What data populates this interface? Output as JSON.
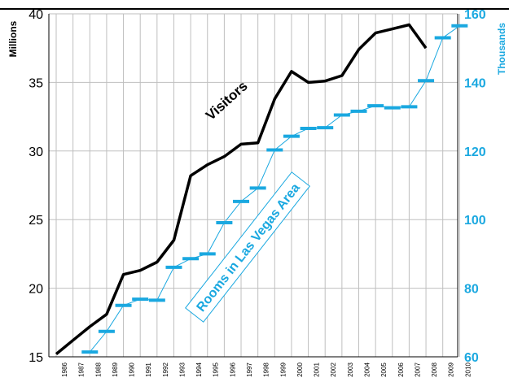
{
  "chart_data": {
    "type": "line",
    "x": [
      "1986",
      "1987",
      "1988",
      "1989",
      "1990",
      "1991",
      "1992",
      "1993",
      "1994",
      "1995",
      "1996",
      "1997",
      "1998",
      "1999",
      "2000",
      "2001",
      "2002",
      "2003",
      "2004",
      "2005",
      "2006",
      "2007",
      "2008",
      "2009",
      "2010"
    ],
    "series": [
      {
        "name": "Visitors",
        "axis": "left",
        "color": "#000000",
        "style": "thick-line",
        "values": [
          15.2,
          16.2,
          17.2,
          18.1,
          21.0,
          21.3,
          21.9,
          23.5,
          28.2,
          29.0,
          29.6,
          30.5,
          30.6,
          33.8,
          35.8,
          35.0,
          35.1,
          35.5,
          37.4,
          38.6,
          38.9,
          39.2,
          37.5,
          null,
          null
        ]
      },
      {
        "name": "Rooms in Las Vegas Area",
        "axis": "right",
        "color": "#1aa8e0",
        "style": "thin-line-with-dash-markers",
        "values": [
          null,
          null,
          61.4,
          67.4,
          75.0,
          76.8,
          76.5,
          86.1,
          88.6,
          90.0,
          99.1,
          105.3,
          109.2,
          120.3,
          124.3,
          126.6,
          126.8,
          130.5,
          131.6,
          133.2,
          132.6,
          132.9,
          140.5,
          153.0,
          156.5
        ]
      }
    ],
    "ylabel_left": "Millions",
    "ylabel_right": "Thousands",
    "ylim_left": [
      15,
      40
    ],
    "ylim_right": [
      60,
      160
    ],
    "yticks_left": [
      "15",
      "20",
      "25",
      "30",
      "35",
      "40"
    ],
    "yticks_right": [
      "60",
      "80",
      "100",
      "120",
      "140",
      "160"
    ],
    "grid": true,
    "annotations": [
      "Visitors",
      "Rooms in Las Vegas Area"
    ]
  }
}
